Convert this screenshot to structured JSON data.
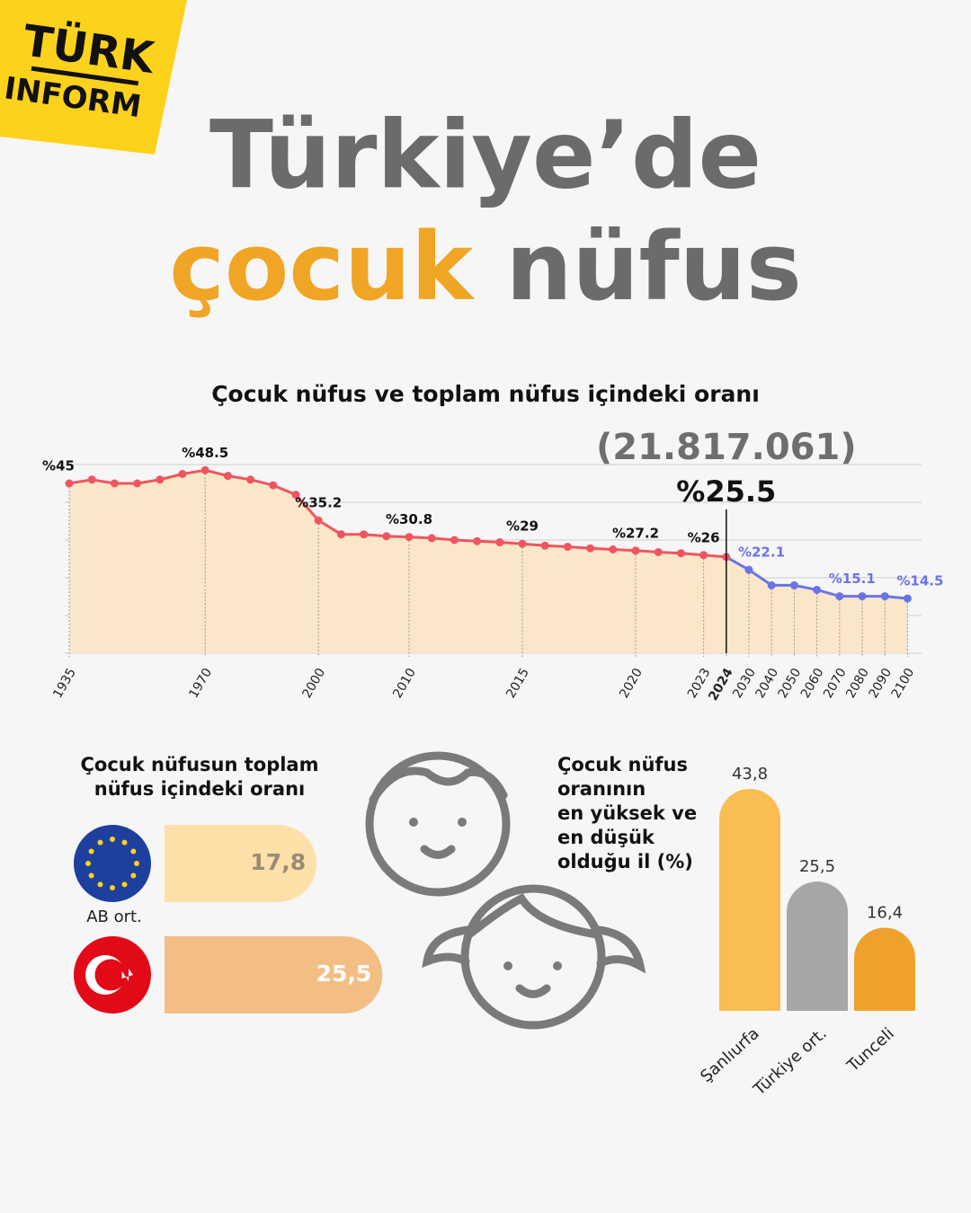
{
  "logo": {
    "line1": "TÜRK",
    "line2": "INFORM"
  },
  "title": {
    "line1": "Türkiye’de",
    "highlight": "çocuk",
    "rest": "nüfus"
  },
  "chart_data": [
    {
      "type": "line",
      "title": "Çocuk nüfus ve toplam nüfus içindeki oranı",
      "annotation": "(21.817.061)",
      "categories": [
        "1935",
        null,
        null,
        null,
        null,
        null,
        "1970",
        null,
        null,
        null,
        null,
        "2000",
        null,
        null,
        null,
        "2010",
        null,
        null,
        null,
        null,
        "2015",
        null,
        null,
        null,
        null,
        "2020",
        null,
        null,
        "2023",
        "2024",
        "2030",
        "2040",
        "2050",
        "2060",
        "2070",
        "2080",
        "2090",
        "2100"
      ],
      "highlight_index": 29,
      "series": [
        {
          "values": [
            45,
            46,
            45,
            45,
            46,
            47.5,
            48.5,
            47,
            46,
            44.5,
            42,
            35.2,
            31.5,
            31.5,
            31,
            30.8,
            30.5,
            30,
            29.7,
            29.4,
            29,
            28.5,
            28.2,
            27.8,
            27.5,
            27.2,
            26.8,
            26.5,
            26,
            25.5,
            22.1,
            18,
            18,
            16.8,
            15.1,
            15.1,
            15.1,
            14.5
          ],
          "value_labels": [
            "%45",
            null,
            null,
            null,
            null,
            null,
            "%48.5",
            null,
            null,
            null,
            null,
            "%35.2",
            null,
            null,
            null,
            "%30.8",
            null,
            null,
            null,
            null,
            "%29",
            null,
            null,
            null,
            null,
            "%27.2",
            null,
            null,
            "%26",
            "%25.5",
            "%22.1",
            null,
            null,
            null,
            "%15.1",
            null,
            null,
            "%14.5"
          ],
          "colors": [
            "#ef5560",
            "#ef5560",
            "#ef5560",
            "#ef5560",
            "#ef5560",
            "#ef5560",
            "#ef5560",
            "#ef5560",
            "#ef5560",
            "#ef5560",
            "#ef5560",
            "#ef5560",
            "#ef5560",
            "#ef5560",
            "#ef5560",
            "#ef5560",
            "#ef5560",
            "#ef5560",
            "#ef5560",
            "#ef5560",
            "#ef5560",
            "#ef5560",
            "#ef5560",
            "#ef5560",
            "#ef5560",
            "#ef5560",
            "#ef5560",
            "#ef5560",
            "#ef5560",
            "#ef5560",
            "#6b74e6",
            "#6b74e6",
            "#6b74e6",
            "#6b74e6",
            "#6b74e6",
            "#6b74e6",
            "#6b74e6",
            "#6b74e6"
          ]
        }
      ],
      "area_color": "#fae7c9",
      "ylim": [
        0,
        50
      ],
      "yticks": [
        0,
        10,
        20,
        30,
        40,
        50
      ],
      "grid": true
    },
    {
      "type": "hbar",
      "title": [
        "Çocuk nüfusun toplam",
        "nüfus içindeki oranı"
      ],
      "categories": [
        "AB ort.",
        null
      ],
      "values": [
        17.8,
        25.5
      ],
      "value_labels": [
        "17,8",
        "25,5"
      ],
      "colors": [
        "#fde0a8",
        "#f2be83"
      ],
      "label_colors": [
        "#9a8b78",
        "#ffffff"
      ]
    },
    {
      "type": "vbar",
      "title": [
        "Çocuk nüfus",
        "oranının",
        "en yüksek ve",
        "en düşük",
        "olduğu il (%)"
      ],
      "categories": [
        "Şanlıurfa",
        "Türkiye ort.",
        "Tunceli"
      ],
      "values": [
        43.8,
        25.5,
        16.4
      ],
      "value_labels": [
        "43,8",
        "25,5",
        "16,4"
      ],
      "colors": [
        "#f9bd52",
        "#a6a6a6",
        "#efa12c"
      ]
    }
  ]
}
